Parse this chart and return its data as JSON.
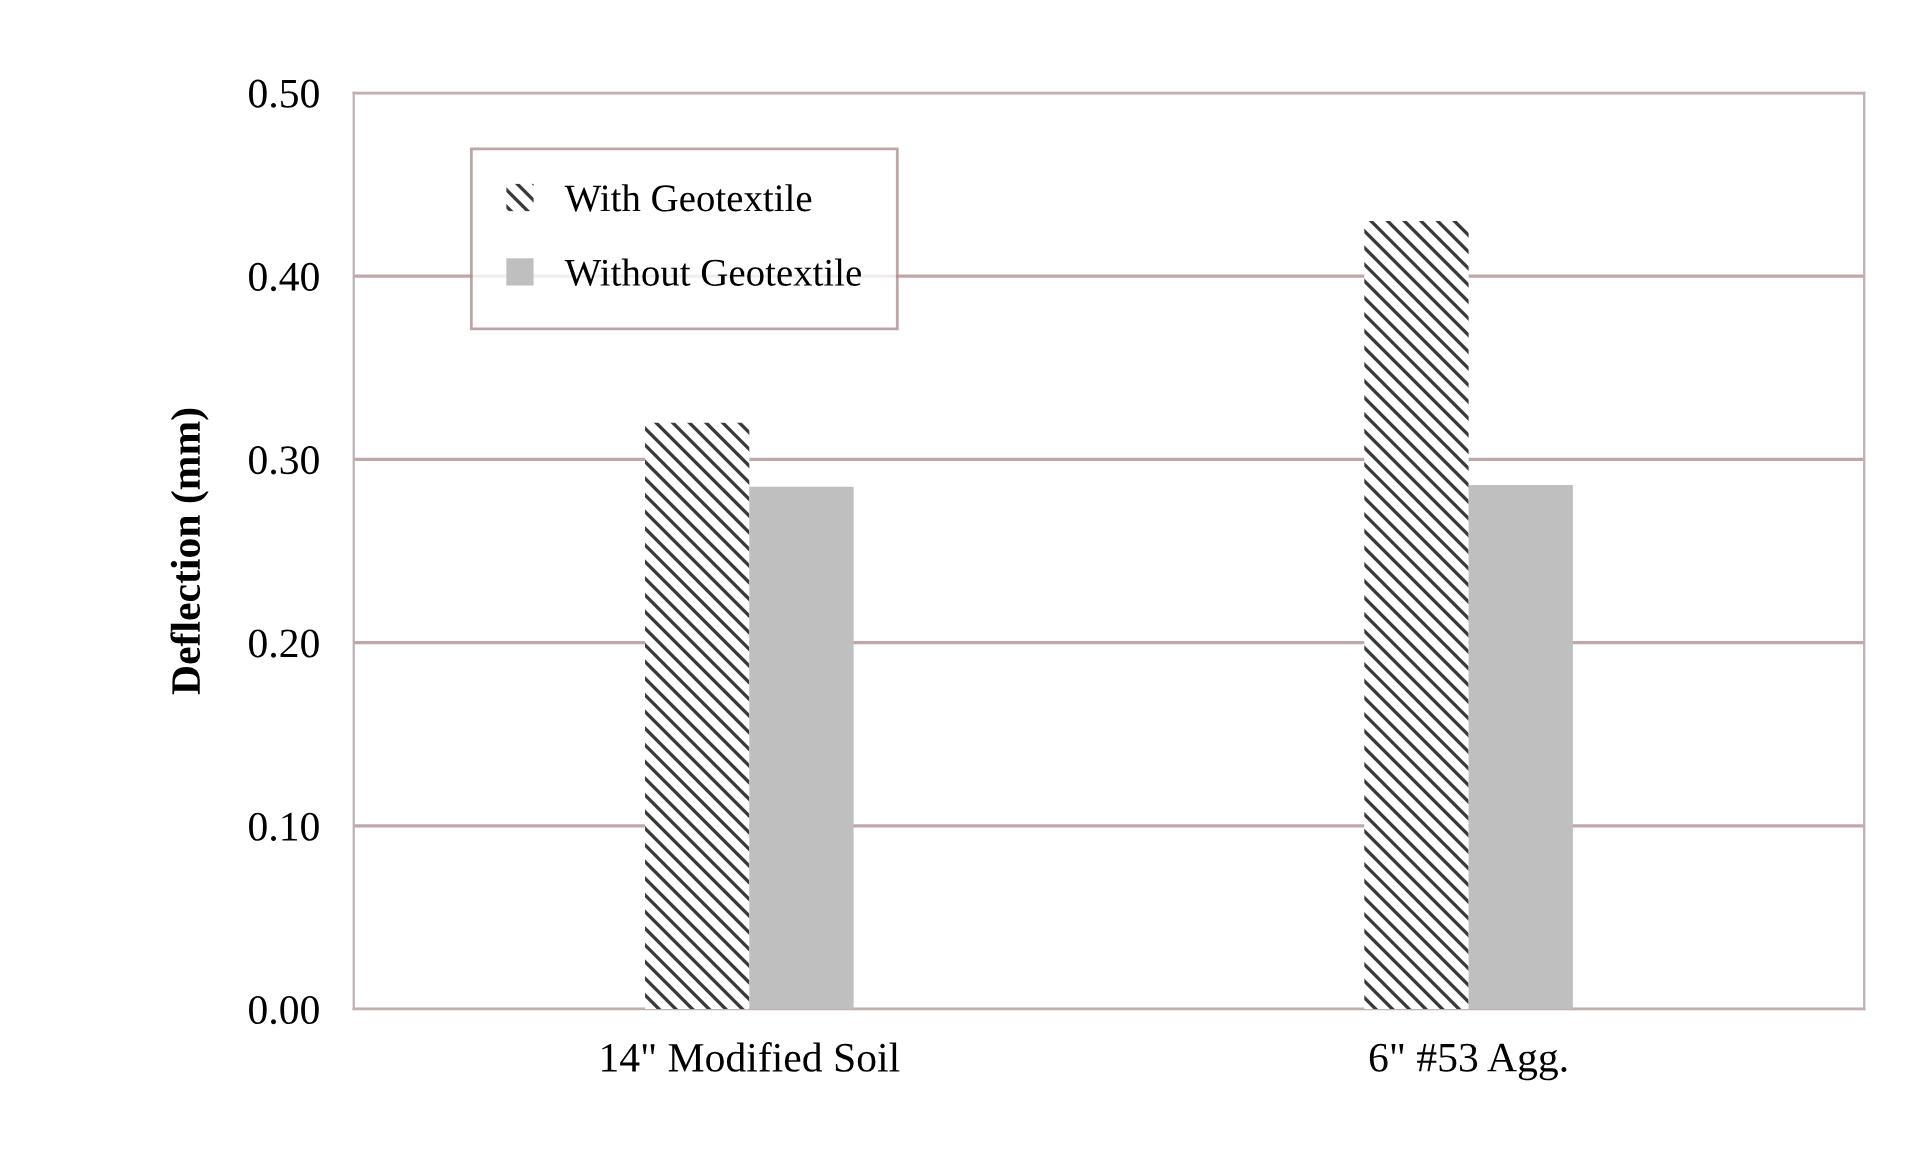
{
  "chart_data": {
    "type": "bar",
    "ylabel": "Deflection (mm)",
    "categories": [
      "14\" Modified Soil",
      "6\" #53 Agg."
    ],
    "series": [
      {
        "name": "With Geotextile",
        "color": "#3a3a3a",
        "values": [
          0.32,
          0.43
        ]
      },
      {
        "name": "Without Geotextile",
        "color": "#bfbfbf",
        "values": [
          0.285,
          0.286
        ]
      }
    ],
    "ylim": [
      0,
      0.5
    ],
    "yticks": [
      {
        "value": 0,
        "label": "0.00"
      },
      {
        "value": 0.1,
        "label": "0.10"
      },
      {
        "value": 0.2,
        "label": "0.20"
      },
      {
        "value": 0.3,
        "label": "0.30"
      },
      {
        "value": 0.4,
        "label": "0.40"
      },
      {
        "value": 0.5,
        "label": "0.50"
      }
    ],
    "grid": "y",
    "legend": "top left"
  }
}
